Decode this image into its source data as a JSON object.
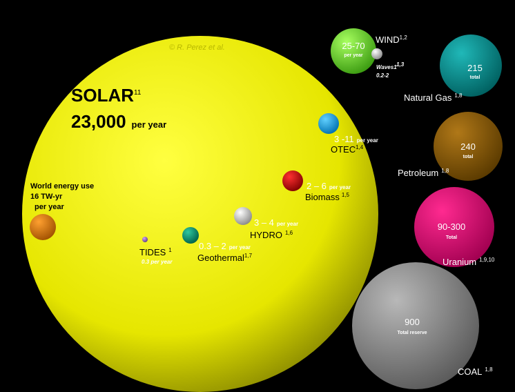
{
  "credit": "© R. Perez et al.",
  "solar": {
    "name": "SOLAR",
    "ref": "11",
    "value": "23,000",
    "unit": "per year"
  },
  "world": {
    "line1": "World energy use",
    "line2": "16 TW-yr",
    "line3": "per year"
  },
  "otec": {
    "value": "3 -11",
    "unit": "per year",
    "name": "OTEC",
    "ref": "1,4"
  },
  "biomass": {
    "value": "2 – 6",
    "unit": "per year",
    "name": "Biomass",
    "ref": "1,5"
  },
  "hydro": {
    "value": "3 – 4",
    "unit": "per year",
    "name": "HYDRO",
    "ref": "1,6"
  },
  "geothermal": {
    "value": "0.3 – 2",
    "unit": "per year",
    "name": "Geothermal",
    "ref": "1,7"
  },
  "tides": {
    "name": "TIDES",
    "ref": "1",
    "value": "0.3 per year"
  },
  "wind": {
    "value": "25-70",
    "unit": "per year",
    "name": "WIND",
    "ref": "1,2"
  },
  "waves": {
    "name": "Waves1",
    "ref": "1,3",
    "value": "0.2-2"
  },
  "gas": {
    "value": "215",
    "unit": "total",
    "name": "Natural Gas",
    "ref": "1,8"
  },
  "petroleum": {
    "value": "240",
    "unit": "total",
    "name": "Petroleum",
    "ref": "1,8"
  },
  "uranium": {
    "value": "90-300",
    "unit": "Total",
    "name": "Uranium",
    "ref": "1,9,10"
  },
  "coal": {
    "value": "900",
    "unit": "Total reserve",
    "name": "COAL",
    "ref": "1,8"
  }
}
